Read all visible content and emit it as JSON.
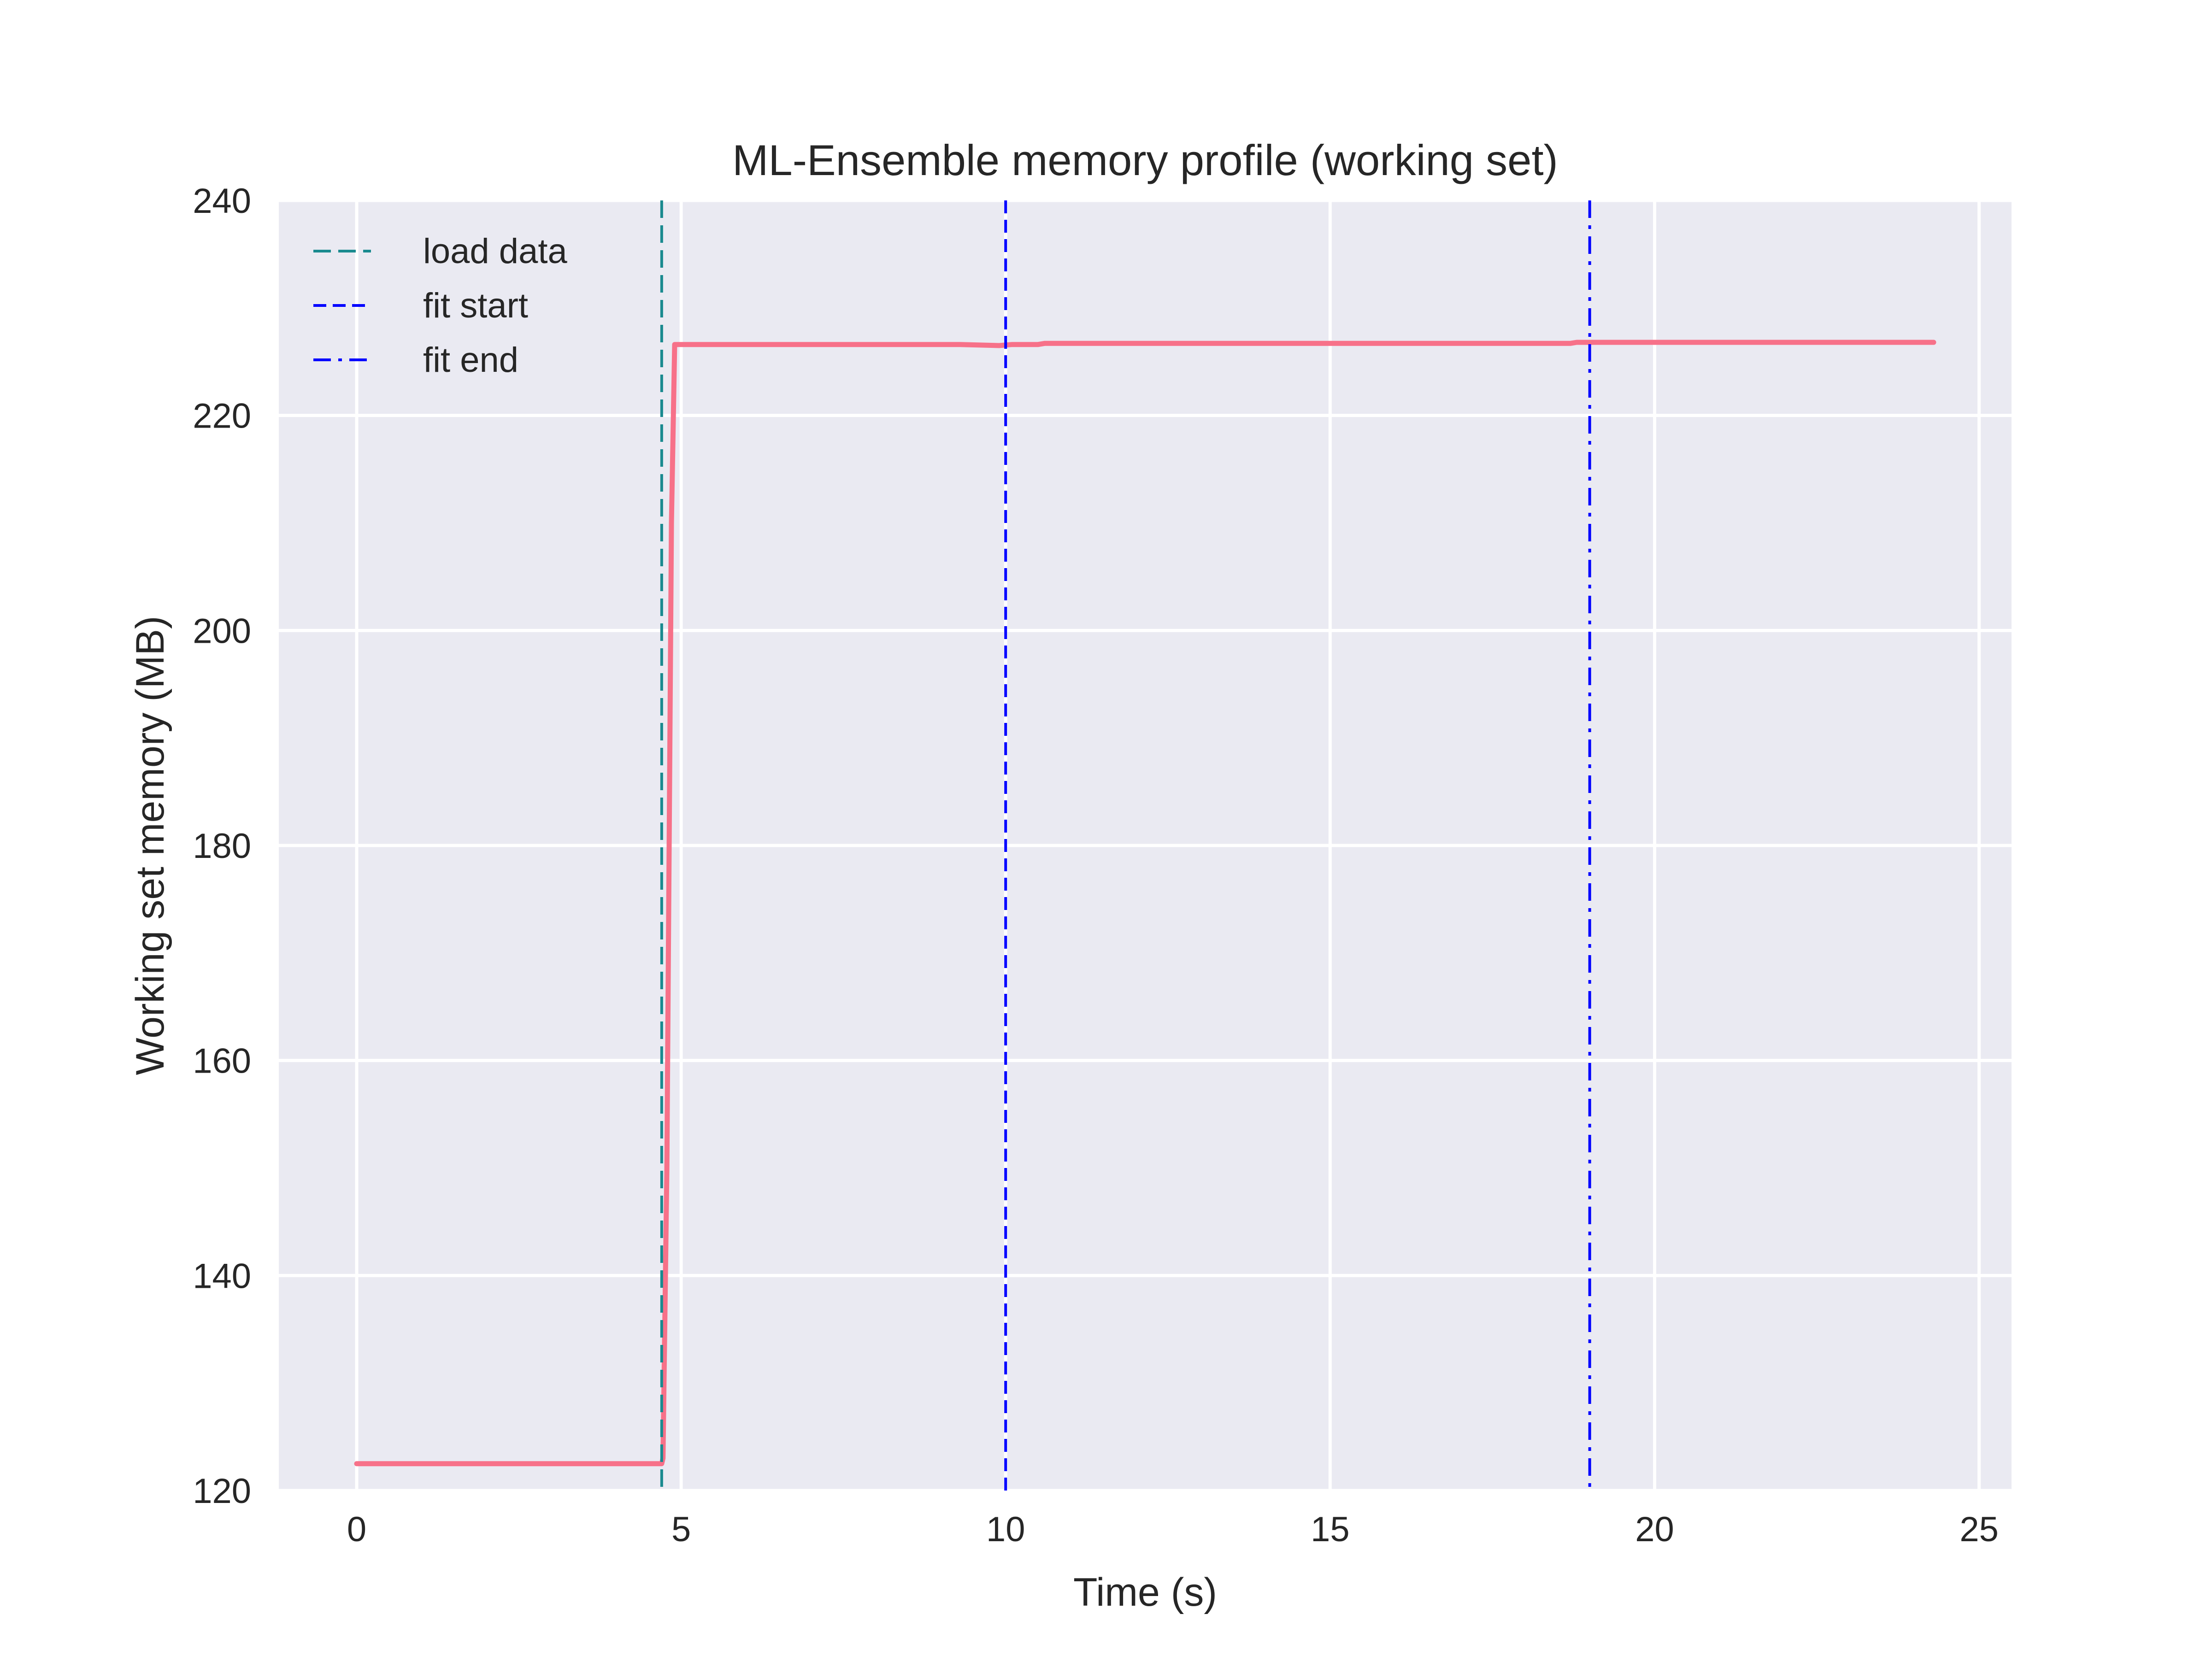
{
  "chart_data": {
    "type": "line",
    "title": "ML-Ensemble memory profile (working set)",
    "xlabel": "Time (s)",
    "ylabel": "Working set memory (MB)",
    "xlim": [
      -1.2,
      25.5
    ],
    "ylim": [
      120,
      240
    ],
    "xticks": [
      "0",
      "5",
      "10",
      "15",
      "20",
      "25"
    ],
    "xtick_values": [
      0,
      5,
      10,
      15,
      20,
      25
    ],
    "yticks": [
      "120",
      "140",
      "160",
      "180",
      "200",
      "220",
      "240"
    ],
    "ytick_values": [
      120,
      140,
      160,
      180,
      200,
      220,
      240
    ],
    "grid": true,
    "legend_position": "top-left",
    "background": "#eaeaf2",
    "series": [
      {
        "color": "#f77189",
        "x": [
          0,
          4.7,
          4.72,
          4.78,
          4.85,
          4.9,
          9.3,
          9.9,
          10.1,
          10.5,
          10.6,
          18.7,
          18.8,
          24.3
        ],
        "y": [
          122.5,
          122.5,
          123.0,
          150.0,
          210.0,
          226.6,
          226.6,
          226.5,
          226.6,
          226.6,
          226.7,
          226.7,
          226.8,
          226.8
        ]
      }
    ],
    "vlines": [
      {
        "label": "load data",
        "x": 4.7,
        "color": "#1a8a8f",
        "style": "dashed-long"
      },
      {
        "label": "fit start",
        "x": 10.0,
        "color": "#0000ff",
        "style": "dashed"
      },
      {
        "label": "fit end",
        "x": 19.0,
        "color": "#0000ff",
        "style": "dashdot"
      }
    ]
  }
}
